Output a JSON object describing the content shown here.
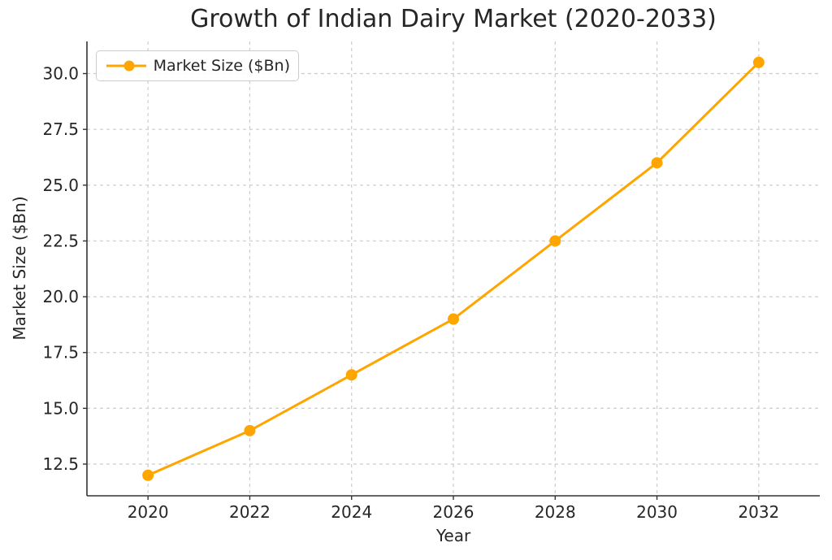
{
  "colors": {
    "series": "#FFA500",
    "text": "#262626",
    "grid": "#cccccc",
    "spine": "#333333",
    "background": "#ffffff"
  },
  "chart_data": {
    "type": "line",
    "title": "Growth of Indian Dairy Market (2020-2033)",
    "xlabel": "Year",
    "ylabel": "Market Size ($Bn)",
    "grid": true,
    "legend_position": "upper left",
    "x": [
      2020,
      2022,
      2024,
      2026,
      2028,
      2030,
      2032
    ],
    "series": [
      {
        "name": "Market Size ($Bn)",
        "color": "#FFA500",
        "values": [
          12.0,
          14.0,
          16.5,
          19.0,
          22.5,
          26.0,
          30.5
        ]
      }
    ],
    "x_tick_labels": [
      "2020",
      "2022",
      "2024",
      "2026",
      "2028",
      "2030",
      "2032"
    ],
    "y_ticks": [
      12.5,
      15.0,
      17.5,
      20.0,
      22.5,
      25.0,
      27.5,
      30.0
    ],
    "y_tick_labels": [
      "12.5",
      "15.0",
      "17.5",
      "20.0",
      "22.5",
      "25.0",
      "27.5",
      "30.0"
    ],
    "xlim": [
      2018.8,
      2033.2
    ],
    "ylim": [
      11.08,
      31.44
    ]
  }
}
